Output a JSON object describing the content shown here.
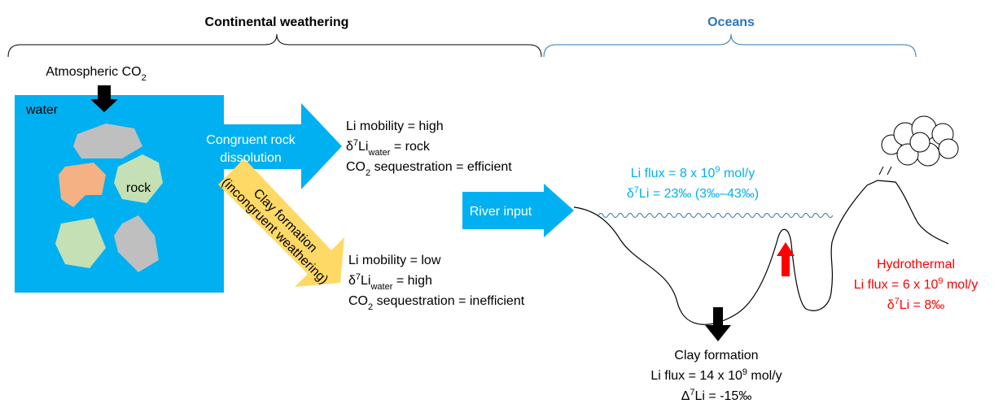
{
  "header": {
    "left_title": "Continental weathering",
    "right_title": "Oceans"
  },
  "atmospheric": [
    [
      "Atmospheric CO",
      {
        "sub": "2"
      }
    ]
  ],
  "box": {
    "water_label": "water",
    "rock_label": "rock"
  },
  "congruent_arrow": [
    [
      "Congruent rock"
    ],
    [
      "dissolution"
    ]
  ],
  "clay_arrow": [
    [
      "Clay formation"
    ],
    [
      "(incongruent weathering)"
    ]
  ],
  "congruent_result": [
    [
      "Li mobility = high"
    ],
    [
      "δ",
      {
        "sup": "7"
      },
      "Li",
      {
        "sub": "water"
      },
      " = rock"
    ],
    [
      "CO",
      {
        "sub": "2"
      },
      " sequestration = efficient"
    ]
  ],
  "clay_result": [
    [
      "Li mobility = low"
    ],
    [
      "δ",
      {
        "sup": "7"
      },
      "Li",
      {
        "sub": "water"
      },
      " = high"
    ],
    [
      "CO",
      {
        "sub": "2"
      },
      " sequestration = inefficient"
    ]
  ],
  "river_input": [
    [
      "River input"
    ]
  ],
  "river_flux": [
    [
      "Li flux = 8 x 10",
      {
        "sup": "9"
      },
      " mol/y"
    ],
    [
      "δ",
      {
        "sup": "7"
      },
      "Li = 23‰ (3‰–43‰)"
    ]
  ],
  "hydrothermal": [
    [
      "Hydrothermal"
    ],
    [
      "Li flux = 6 x 10",
      {
        "sup": "9"
      },
      " mol/y"
    ],
    [
      "δ",
      {
        "sup": "7"
      },
      "Li = 8‰"
    ]
  ],
  "clay_sink": [
    [
      "Clay formation"
    ],
    [
      "Li flux = 14 x 10",
      {
        "sup": "9"
      },
      " mol/y"
    ],
    [
      "Δ",
      {
        "sup": "7"
      },
      "Li = -15‰"
    ]
  ]
}
